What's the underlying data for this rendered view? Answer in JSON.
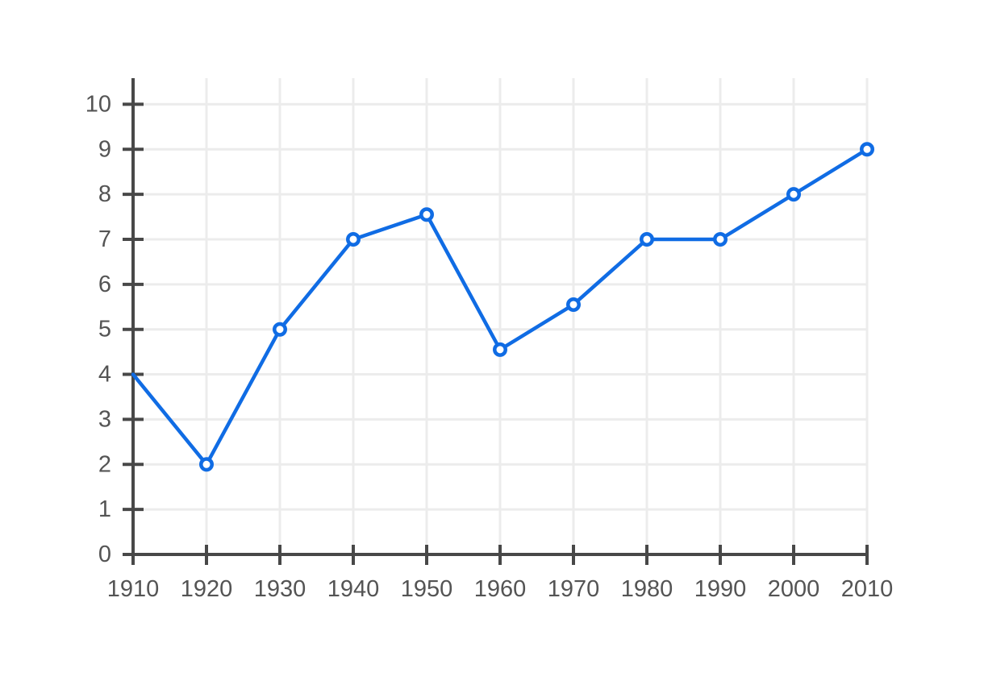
{
  "chart_data": {
    "type": "line",
    "title": "",
    "subtitle": "",
    "xlabel": "",
    "ylabel": "",
    "x": [
      1910,
      1920,
      1930,
      1940,
      1950,
      1960,
      1970,
      1980,
      1990,
      2000,
      2010
    ],
    "series": [
      {
        "name": "series-1",
        "values": [
          4,
          2,
          5,
          7,
          7.55,
          4.55,
          5.55,
          7,
          7,
          8,
          9
        ]
      }
    ],
    "xlim": [
      1910,
      2010
    ],
    "ylim": [
      0,
      10
    ],
    "yticks": [
      0,
      1,
      2,
      3,
      4,
      5,
      6,
      7,
      8,
      9,
      10
    ],
    "ytick_labels": [
      "0",
      "1",
      "2",
      "3",
      "4",
      "5",
      "6",
      "7",
      "8",
      "9",
      "10"
    ],
    "xtick_labels": [
      "1910",
      "1920",
      "1930",
      "1940",
      "1950",
      "1960",
      "1970",
      "1980",
      "1990",
      "2000",
      "2010"
    ],
    "grid": true,
    "legend_visible": false,
    "marker": "open-circle",
    "first_point_marker_hidden": true,
    "colors": {
      "line": "#106ce4",
      "marker_fill": "#ffffff",
      "axis": "#484848",
      "grid": "#ececec",
      "tick_label": "#545454",
      "background": "#ffffff"
    }
  }
}
